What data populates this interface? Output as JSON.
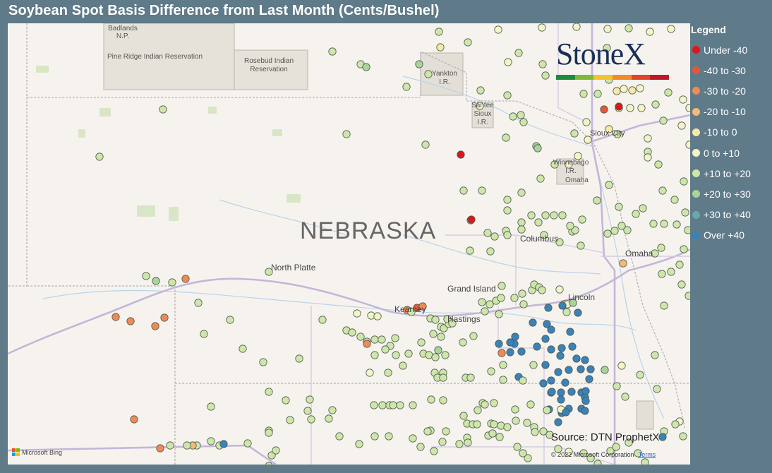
{
  "title": "Soybean Spot Basis Difference from Last Month (Cents/Bushel)",
  "legend": {
    "title": "Legend",
    "items": [
      {
        "label": "Under -40",
        "color": "#d7191c"
      },
      {
        "label": "-40 to -30",
        "color": "#e8553a"
      },
      {
        "label": "-30 to -20",
        "color": "#f08a55"
      },
      {
        "label": "-20 to -10",
        "color": "#f5b978"
      },
      {
        "label": "-10 to 0",
        "color": "#f7e8a6"
      },
      {
        "label": "0 to +10",
        "color": "#f2f5c8"
      },
      {
        "label": "+10 to +20",
        "color": "#cfe6aa"
      },
      {
        "label": "+20 to +30",
        "color": "#a9d39a"
      },
      {
        "label": "+30 to +40",
        "color": "#6aa9a9"
      },
      {
        "label": "Over +40",
        "color": "#3b82b8"
      }
    ]
  },
  "map": {
    "state_label": "NEBRASKA",
    "places": [
      "North Platte",
      "Grand Island",
      "Kearney",
      "Hastings",
      "Columbus",
      "Lincoln",
      "Omaha",
      "Sioux City",
      "Yankton I.R.",
      "Santee Sioux I.R.",
      "Winnebago I.R.",
      "Omaha",
      "Pine Ridge Indian Reservation",
      "Rosebud Indian Reservation",
      "Badlands N.P."
    ],
    "cities": {
      "north_platte": "North Platte",
      "grand_island": "Grand Island",
      "kearney": "Kearney",
      "hastings": "Hastings",
      "columbus": "Columbus",
      "lincoln": "Lincoln",
      "omaha": "Omaha",
      "sioux_city": "Sioux City"
    },
    "reservations": {
      "yankton": "Yankton I.R.",
      "santee": "Santee Sioux I.R.",
      "winnebago": "Winnebago I.R.",
      "omaha_res": "Omaha",
      "pine_ridge": "Pine Ridge Indian Reservation",
      "rosebud": "Rosebud Indian Reservation",
      "badlands": "Badlands N.P."
    }
  },
  "logo_text": "StoneX",
  "source": "Source: DTN ProphetX",
  "copyright": "© 2022 Microsoft Corporation",
  "terms": "Terms",
  "bing": "Microsoft Bing"
}
